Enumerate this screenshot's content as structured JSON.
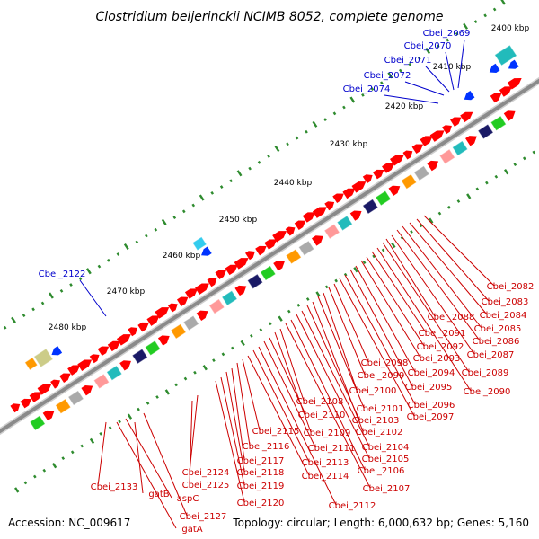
{
  "title": "Clostridium beijerinckii NCIMB 8052, complete genome",
  "footer": {
    "accession": "Accession: NC_009617",
    "summary": "Topology: circular; Length: 6,000,632 bp; Genes: 5,160"
  },
  "colors": {
    "backbone": "#8a8a8a",
    "tick_dots": "#2e8b2e",
    "label_blue": "#0000cc",
    "label_red": "#cc0000",
    "gene_red": "#ff0000",
    "gene_blue": "#0033ff",
    "gene_cyan": "#33ccee",
    "gene_green": "#22cc22",
    "gene_orange": "#ff9900",
    "gene_navy": "#1a1a66",
    "gene_slate": "#5555aa",
    "gene_teal": "#22bbbb",
    "gene_olive": "#cccc88",
    "gene_pink": "#ff3399",
    "gene_salmon": "#ff9999",
    "gene_gray": "#aaaaaa"
  },
  "ticks": [
    {
      "label": "2400 kbp"
    },
    {
      "label": "2410 kbp"
    },
    {
      "label": "2420 kbp"
    },
    {
      "label": "2430 kbp"
    },
    {
      "label": "2440 kbp"
    },
    {
      "label": "2450 kbp"
    },
    {
      "label": "2460 kbp"
    },
    {
      "label": "2470 kbp"
    },
    {
      "label": "2480 kbp"
    }
  ],
  "labels_blue": [
    {
      "text": "Cbei_2069"
    },
    {
      "text": "Cbei_2070"
    },
    {
      "text": "Cbei_2071"
    },
    {
      "text": "Cbei_2072"
    },
    {
      "text": "Cbei_2074"
    },
    {
      "text": "Cbei_2122"
    }
  ],
  "labels_red": [
    {
      "text": "Cbei_2082"
    },
    {
      "text": "Cbei_2083"
    },
    {
      "text": "Cbei_2084"
    },
    {
      "text": "Cbei_2085"
    },
    {
      "text": "Cbei_2086"
    },
    {
      "text": "Cbei_2087"
    },
    {
      "text": "Cbei_2088"
    },
    {
      "text": "Cbei_2089"
    },
    {
      "text": "Cbei_2090"
    },
    {
      "text": "Cbei_2091"
    },
    {
      "text": "Cbei_2092"
    },
    {
      "text": "Cbei_2093"
    },
    {
      "text": "Cbei_2094"
    },
    {
      "text": "Cbei_2095"
    },
    {
      "text": "Cbei_2096"
    },
    {
      "text": "Cbei_2097"
    },
    {
      "text": "Cbei_2098"
    },
    {
      "text": "Cbei_2099"
    },
    {
      "text": "Cbei_2100"
    },
    {
      "text": "Cbei_2101"
    },
    {
      "text": "Cbei_2102"
    },
    {
      "text": "Cbei_2103"
    },
    {
      "text": "Cbei_2104"
    },
    {
      "text": "Cbei_2105"
    },
    {
      "text": "Cbei_2106"
    },
    {
      "text": "Cbei_2107"
    },
    {
      "text": "Cbei_2108"
    },
    {
      "text": "Cbei_2109"
    },
    {
      "text": "Cbei_2110"
    },
    {
      "text": "Cbei_2111"
    },
    {
      "text": "Cbei_2112"
    },
    {
      "text": "Cbei_2113"
    },
    {
      "text": "Cbei_2114"
    },
    {
      "text": "Cbei_2115"
    },
    {
      "text": "Cbei_2116"
    },
    {
      "text": "Cbei_2117"
    },
    {
      "text": "Cbei_2118"
    },
    {
      "text": "Cbei_2119"
    },
    {
      "text": "Cbei_2120"
    },
    {
      "text": "Cbei_2124"
    },
    {
      "text": "Cbei_2125"
    },
    {
      "text": "Cbei_2127"
    },
    {
      "text": "Cbei_2133"
    },
    {
      "text": "gatB"
    },
    {
      "text": "aspC"
    },
    {
      "text": "gatA"
    }
  ]
}
